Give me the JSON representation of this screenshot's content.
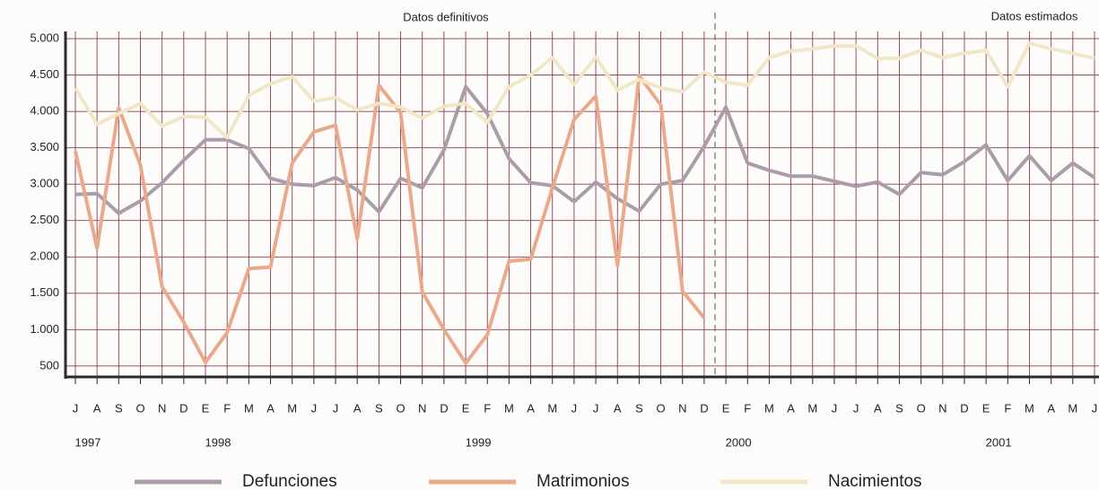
{
  "chart_data": {
    "type": "line",
    "annotations": [
      "Datos definitivos",
      "Datos estimados"
    ],
    "categories": [
      "J",
      "A",
      "S",
      "O",
      "N",
      "D",
      "E",
      "F",
      "M",
      "A",
      "M",
      "J",
      "J",
      "A",
      "S",
      "O",
      "N",
      "D",
      "E",
      "F",
      "M",
      "A",
      "M",
      "J",
      "J",
      "A",
      "S",
      "O",
      "N",
      "D",
      "E",
      "F",
      "M",
      "A",
      "M",
      "J",
      "J",
      "A",
      "S",
      "O",
      "N",
      "D",
      "E",
      "F",
      "M",
      "A",
      "M",
      "J"
    ],
    "year_labels": [
      {
        "label": "1997",
        "index": 0
      },
      {
        "label": "1998",
        "index": 6
      },
      {
        "label": "1999",
        "index": 18
      },
      {
        "label": "2000",
        "index": 30
      },
      {
        "label": "2001",
        "index": 42
      }
    ],
    "series": [
      {
        "name": "Defunciones",
        "color": "#ab9ca9",
        "values": [
          2860,
          2870,
          2600,
          2770,
          3020,
          3330,
          3610,
          3610,
          3490,
          3080,
          3000,
          2980,
          3090,
          2920,
          2620,
          3080,
          2950,
          3470,
          4340,
          3970,
          3350,
          3020,
          2980,
          2760,
          3030,
          2800,
          2630,
          3000,
          3050,
          3520,
          4060,
          3290,
          3190,
          3110,
          3110,
          3040,
          2970,
          3030,
          2860,
          3160,
          3130,
          3310,
          3540,
          3050,
          3390,
          3050,
          3290,
          3090
        ]
      },
      {
        "name": "Matrimonios",
        "color": "#eaa98a",
        "values": [
          3450,
          2120,
          4050,
          3260,
          1590,
          1100,
          550,
          960,
          1840,
          1860,
          3290,
          3720,
          3810,
          2250,
          4360,
          3980,
          1520,
          1000,
          540,
          930,
          1940,
          1970,
          2950,
          3890,
          4210,
          1880,
          4490,
          4090,
          1530,
          1160,
          null,
          null,
          null,
          null,
          null,
          null,
          null,
          null,
          null,
          null,
          null,
          null,
          null,
          null,
          null,
          null,
          null,
          null
        ]
      },
      {
        "name": "Nacimientos",
        "color": "#f1e7c8",
        "values": [
          4320,
          3820,
          3970,
          4110,
          3800,
          3930,
          3920,
          3640,
          4220,
          4380,
          4480,
          4140,
          4190,
          4020,
          4110,
          4060,
          3910,
          4070,
          4110,
          3850,
          4340,
          4500,
          4740,
          4370,
          4750,
          4290,
          4440,
          4320,
          4270,
          4540,
          4400,
          4360,
          4740,
          4830,
          4860,
          4900,
          4900,
          4730,
          4730,
          4840,
          4740,
          4800,
          4840,
          4340,
          4940,
          4860,
          4800,
          4730
        ]
      }
    ],
    "ylim": [
      350,
      5100
    ],
    "yticks": [
      {
        "value": 500,
        "label": "500"
      },
      {
        "value": 1000,
        "label": "1.000"
      },
      {
        "value": 1500,
        "label": "1.500"
      },
      {
        "value": 2000,
        "label": "2.000"
      },
      {
        "value": 2500,
        "label": "2.500"
      },
      {
        "value": 3000,
        "label": "3.000"
      },
      {
        "value": 3500,
        "label": "3.500"
      },
      {
        "value": 4000,
        "label": "4.000"
      },
      {
        "value": 4500,
        "label": "4.500"
      },
      {
        "value": 5000,
        "label": "5.000"
      }
    ],
    "grid": true
  }
}
